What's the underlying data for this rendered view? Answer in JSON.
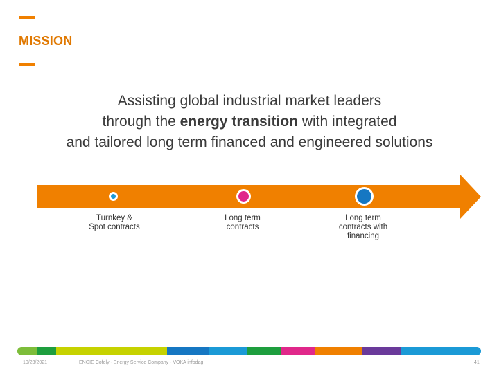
{
  "slide": {
    "section_title": "MISSION",
    "mission": {
      "line1": "Assisting global industrial market leaders",
      "line2_prefix": "through the ",
      "line2_bold": "energy transition",
      "line2_suffix": " with integrated",
      "line3": "and tailored long term financed and engineered solutions"
    },
    "timeline": {
      "color": "#f08000",
      "steps": [
        {
          "line1": "Turnkey &",
          "line2": "Spot contracts",
          "line3": "",
          "color": "#1b9ad6"
        },
        {
          "line1": "Long term",
          "line2": "contracts",
          "line3": "",
          "color": "#e0288a"
        },
        {
          "line1": "Long term",
          "line2": "contracts with",
          "line3": "financing",
          "color": "#1677c2"
        }
      ]
    },
    "footer": {
      "date": "10/23/2021",
      "caption": "ENGIE Cofely - Energy Service Company - VOKA infodag",
      "page": "41",
      "band_colors": [
        "#7dbd3a",
        "#1e9e3e",
        "#c6d200",
        "#c6d200",
        "#1677c2",
        "#1b9ad6",
        "#1e9e3e",
        "#e0288a",
        "#f08000",
        "#6a3a9a",
        "#1b9ad6"
      ]
    }
  }
}
